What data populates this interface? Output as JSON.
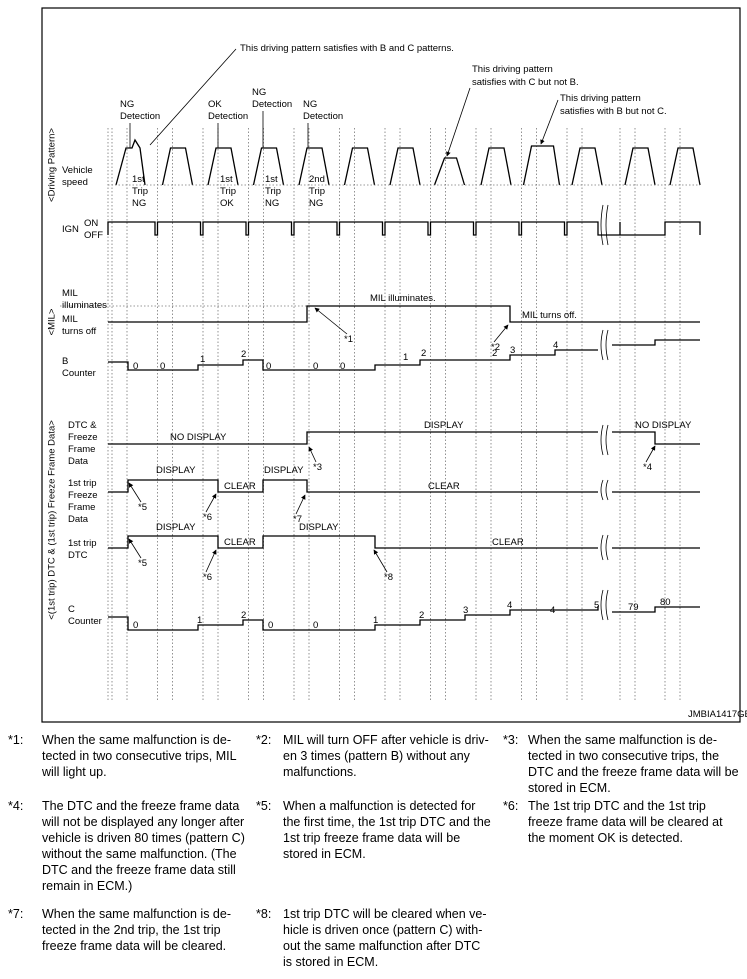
{
  "diagram": {
    "group_labels": [
      "<Driving Pattern>",
      "<MIL>",
      "<(1st trip) DTC & (1st trip) Freeze Frame Data>"
    ],
    "callouts": [
      [
        "This driving pattern satisfies with B and C patterns."
      ],
      [
        "This driving pattern",
        "satisfies with C but not B."
      ],
      [
        "This driving pattern",
        "satisfies with B but not C."
      ]
    ],
    "events": [
      [
        "NG",
        "Detection"
      ],
      [
        "OK",
        "Detection"
      ],
      [
        "NG",
        "Detection"
      ],
      [
        "NG",
        "Detection"
      ]
    ],
    "trips": [
      [
        "1st",
        "Trip",
        "NG"
      ],
      [
        "1st",
        "Trip",
        "OK"
      ],
      [
        "1st",
        "Trip",
        "NG"
      ],
      [
        "2nd",
        "Trip",
        "NG"
      ]
    ],
    "rows": {
      "vehicle_speed": [
        "Vehicle",
        "speed"
      ],
      "ign": "IGN",
      "ign_on": "ON",
      "ign_off": "OFF",
      "mil_on": [
        "MIL",
        "illuminates"
      ],
      "mil_off": [
        "MIL",
        "turns off"
      ],
      "b_counter": [
        "B",
        "Counter"
      ],
      "dtc_ffd": [
        "DTC &",
        "Freeze",
        "Frame",
        "Data"
      ],
      "ffd_1st": [
        "1st trip",
        "Freeze",
        "Frame",
        "Data"
      ],
      "dtc_1st": [
        "1st trip",
        "DTC"
      ],
      "c_counter": [
        "C",
        "Counter"
      ]
    },
    "states": {
      "mil": [
        "MIL illuminates.",
        "MIL turns off."
      ],
      "dtc_ffd": [
        "NO DISPLAY",
        "DISPLAY",
        "NO DISPLAY"
      ],
      "ffd_1st": [
        "DISPLAY",
        "CLEAR",
        "DISPLAY",
        "CLEAR"
      ],
      "dtc_1st": [
        "DISPLAY",
        "CLEAR",
        "DISPLAY",
        "CLEAR"
      ]
    },
    "b_counter": [
      0,
      0,
      1,
      2,
      0,
      0,
      0,
      1,
      2,
      2,
      3,
      4
    ],
    "c_counter": [
      0,
      1,
      2,
      0,
      0,
      1,
      2,
      3,
      4,
      4,
      5,
      79,
      80
    ],
    "markers": [
      "*1",
      "*2",
      "*3",
      "*4",
      "*5",
      "*5",
      "*6",
      "*6",
      "*7",
      "*8"
    ],
    "code": "JMBIA1417GB"
  },
  "notes": [
    {
      "marker": "*1:",
      "lines": [
        "When the same malfunction is de-",
        "tected in two consecutive trips, MIL",
        "will light up."
      ]
    },
    {
      "marker": "*2:",
      "lines": [
        "MIL will turn OFF after vehicle is driv-",
        "en 3 times (pattern B) without any",
        "malfunctions."
      ]
    },
    {
      "marker": "*3:",
      "lines": [
        "When the same malfunction is de-",
        "tected in two consecutive trips, the",
        "DTC and the freeze frame data will be",
        "stored in ECM."
      ]
    },
    {
      "marker": "*4:",
      "lines": [
        "The DTC and the freeze frame data",
        "will not be displayed any longer after",
        "vehicle is driven 80 times (pattern C)",
        "without the same malfunction. (The",
        "DTC and the freeze frame data still",
        "remain in ECM.)"
      ]
    },
    {
      "marker": "*5:",
      "lines": [
        "When a malfunction is detected for",
        "the first time, the 1st trip DTC and the",
        "1st trip freeze frame data will be",
        "stored in ECM."
      ]
    },
    {
      "marker": "*6:",
      "lines": [
        "The 1st trip DTC and the 1st trip",
        "freeze frame data will be cleared at",
        "the moment OK is detected."
      ]
    },
    {
      "marker": "*7:",
      "lines": [
        "When the same malfunction is de-",
        "tected in the 2nd trip, the 1st trip",
        "freeze frame data will be cleared."
      ]
    },
    {
      "marker": "*8:",
      "lines": [
        "1st trip DTC will be cleared when ve-",
        "hicle is driven once (pattern C) with-",
        "out the same malfunction after DTC",
        "is stored in ECM."
      ]
    }
  ]
}
